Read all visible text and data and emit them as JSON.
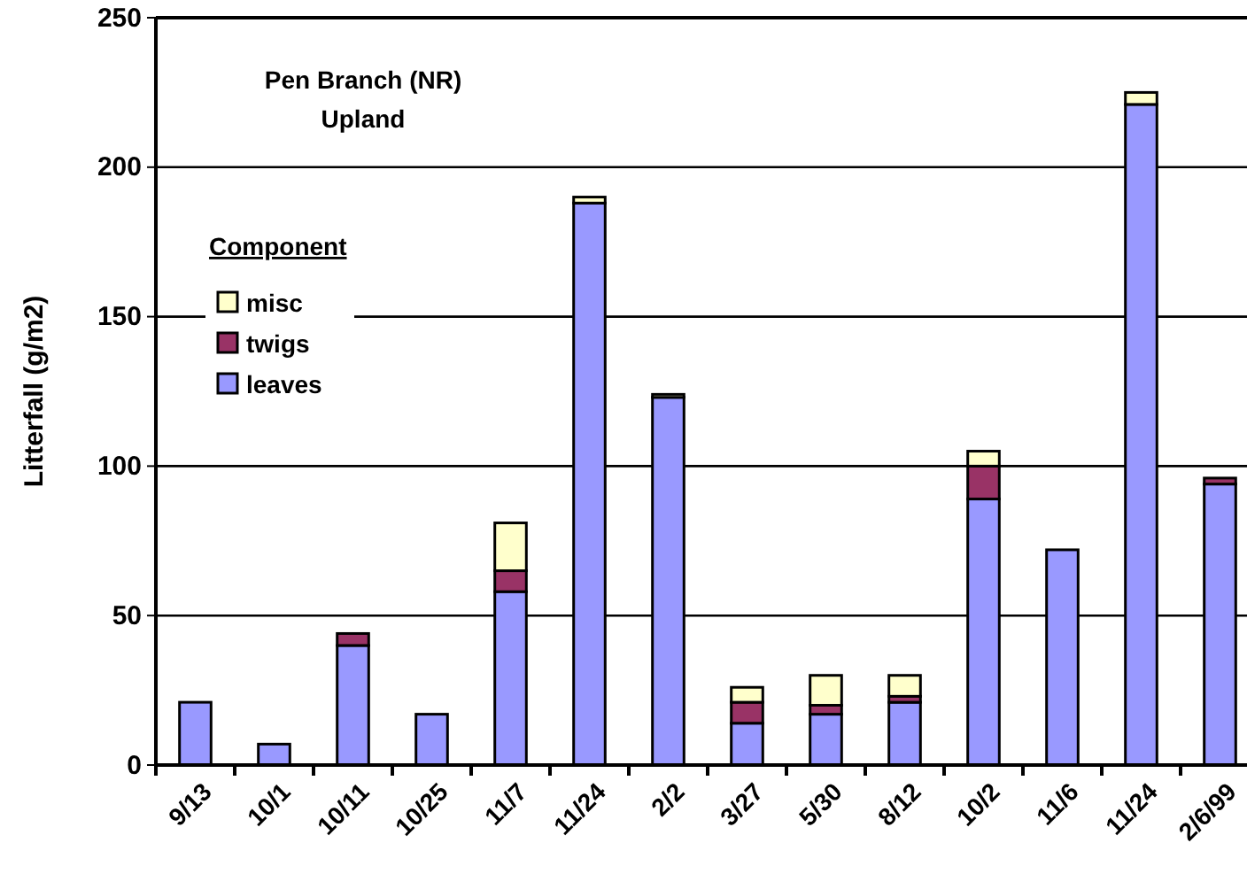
{
  "chart_data": {
    "type": "bar",
    "title": "Pen Branch (NR)\nUpland",
    "ylabel": "Litterfall (g/m2)",
    "legend_title": "Component",
    "stacked": true,
    "grid": "y",
    "legend": "top left",
    "categories": [
      "9/13",
      "10/1",
      "10/11",
      "10/25",
      "11/7",
      "11/24",
      "2/2",
      "3/27",
      "5/30",
      "8/12",
      "10/2",
      "11/6",
      "11/24",
      "2/6/99"
    ],
    "series": [
      {
        "name": "leaves",
        "color": "#9999ff",
        "values": [
          21,
          7,
          40,
          17,
          58,
          188,
          123,
          14,
          17,
          21,
          89,
          72,
          221,
          94
        ]
      },
      {
        "name": "twigs",
        "color": "#993366",
        "values": [
          0,
          0,
          4,
          0,
          7,
          0,
          0,
          7,
          3,
          2,
          11,
          0,
          0,
          2
        ]
      },
      {
        "name": "misc",
        "color": "#ffffcc",
        "values": [
          0,
          0,
          0,
          0,
          16,
          2,
          1,
          5,
          10,
          7,
          5,
          0,
          4,
          0
        ]
      }
    ],
    "ylim": [
      0,
      250
    ],
    "yticks": [
      0,
      50,
      100,
      150,
      200,
      250
    ]
  }
}
